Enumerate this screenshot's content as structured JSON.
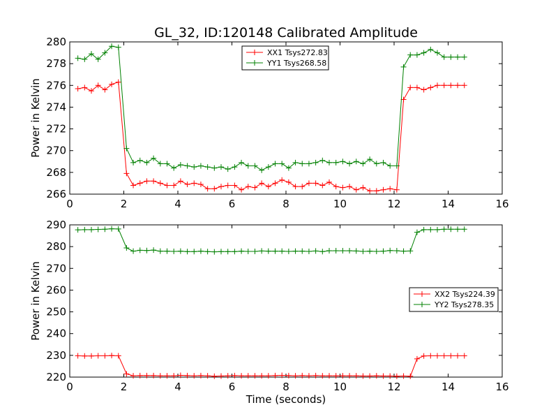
{
  "title": "GL_32, ID:120148 Calibrated Amplitude",
  "xlabel": "Time (seconds)",
  "colors": {
    "xx": "#ff0000",
    "yy": "#008000"
  },
  "chart_data": [
    {
      "type": "line",
      "ylabel": "Power in Kelvin",
      "xlim": [
        0,
        16
      ],
      "ylim": [
        266,
        280
      ],
      "xticks": [
        "0",
        "2",
        "4",
        "6",
        "8",
        "10",
        "12",
        "14",
        "16"
      ],
      "yticks": [
        "266",
        "268",
        "270",
        "272",
        "274",
        "276",
        "278",
        "280"
      ],
      "grid": false,
      "legend_position": "top-center",
      "x": [
        0.3,
        0.55,
        0.8,
        1.05,
        1.3,
        1.55,
        1.8,
        2.1,
        2.35,
        2.6,
        2.85,
        3.1,
        3.35,
        3.6,
        3.85,
        4.1,
        4.35,
        4.6,
        4.85,
        5.1,
        5.35,
        5.6,
        5.85,
        6.1,
        6.35,
        6.6,
        6.85,
        7.1,
        7.35,
        7.6,
        7.85,
        8.1,
        8.35,
        8.6,
        8.85,
        9.1,
        9.35,
        9.6,
        9.85,
        10.1,
        10.35,
        10.6,
        10.85,
        11.1,
        11.35,
        11.6,
        11.85,
        12.1,
        12.35,
        12.6,
        12.85,
        13.1,
        13.35,
        13.6,
        13.85,
        14.1,
        14.35,
        14.6
      ],
      "series": [
        {
          "name": "XX1 Tsys272.83",
          "color": "#ff0000",
          "values": [
            275.7,
            275.8,
            275.5,
            276.0,
            275.6,
            276.1,
            276.3,
            267.9,
            266.8,
            267.0,
            267.2,
            267.2,
            267.0,
            266.8,
            266.8,
            267.2,
            266.9,
            267.0,
            266.9,
            266.5,
            266.5,
            266.7,
            266.8,
            266.8,
            266.4,
            266.7,
            266.6,
            267.0,
            266.7,
            267.0,
            267.3,
            267.1,
            266.7,
            266.7,
            267.0,
            267.0,
            266.8,
            267.1,
            266.7,
            266.6,
            266.7,
            266.4,
            266.6,
            266.3,
            266.3,
            266.4,
            266.5,
            266.4,
            274.7,
            275.8,
            275.8,
            275.6,
            275.8,
            276.0,
            276.0,
            276.0,
            276.0,
            276.0
          ]
        },
        {
          "name": "YY1 Tsys268.58",
          "color": "#008000",
          "values": [
            278.5,
            278.4,
            278.9,
            278.4,
            279.0,
            279.6,
            279.5,
            270.2,
            268.9,
            269.1,
            268.9,
            269.3,
            268.8,
            268.8,
            268.4,
            268.7,
            268.6,
            268.5,
            268.6,
            268.5,
            268.4,
            268.5,
            268.3,
            268.5,
            268.9,
            268.6,
            268.6,
            268.2,
            268.5,
            268.8,
            268.8,
            268.4,
            268.9,
            268.8,
            268.8,
            268.9,
            269.1,
            268.9,
            268.9,
            269.0,
            268.8,
            269.0,
            268.8,
            269.2,
            268.8,
            268.9,
            268.6,
            268.6,
            277.7,
            278.8,
            278.8,
            279.0,
            279.3,
            279.0,
            278.6,
            278.6,
            278.6,
            278.6
          ]
        }
      ]
    },
    {
      "type": "line",
      "ylabel": "Power in Kelvin",
      "xlabel": "Time (seconds)",
      "xlim": [
        0,
        16
      ],
      "ylim": [
        220,
        290
      ],
      "xticks": [
        "0",
        "2",
        "4",
        "6",
        "8",
        "10",
        "12",
        "14",
        "16"
      ],
      "yticks": [
        "220",
        "230",
        "240",
        "250",
        "260",
        "270",
        "280",
        "290"
      ],
      "grid": false,
      "legend_position": "center-right",
      "x": [
        0.3,
        0.55,
        0.8,
        1.05,
        1.3,
        1.55,
        1.8,
        2.1,
        2.35,
        2.6,
        2.85,
        3.1,
        3.35,
        3.6,
        3.85,
        4.1,
        4.35,
        4.6,
        4.85,
        5.1,
        5.35,
        5.6,
        5.85,
        6.1,
        6.35,
        6.6,
        6.85,
        7.1,
        7.35,
        7.6,
        7.85,
        8.1,
        8.35,
        8.6,
        8.85,
        9.1,
        9.35,
        9.6,
        9.85,
        10.1,
        10.35,
        10.6,
        10.85,
        11.1,
        11.35,
        11.6,
        11.85,
        12.1,
        12.35,
        12.6,
        12.85,
        13.1,
        13.35,
        13.6,
        13.85,
        14.1,
        14.35,
        14.6
      ],
      "series": [
        {
          "name": "XX2 Tsys224.39",
          "color": "#ff0000",
          "values": [
            229.8,
            229.7,
            229.7,
            229.8,
            229.8,
            229.9,
            229.8,
            221.5,
            220.6,
            220.7,
            220.7,
            220.7,
            220.6,
            220.6,
            220.6,
            220.8,
            220.7,
            220.6,
            220.7,
            220.6,
            220.4,
            220.5,
            220.6,
            220.7,
            220.6,
            220.6,
            220.6,
            220.6,
            220.6,
            220.7,
            220.8,
            220.7,
            220.6,
            220.7,
            220.6,
            220.7,
            220.6,
            220.6,
            220.6,
            220.6,
            220.6,
            220.6,
            220.5,
            220.5,
            220.6,
            220.5,
            220.5,
            220.4,
            220.5,
            220.4,
            228.4,
            229.7,
            229.8,
            229.8,
            229.8,
            229.8,
            229.8,
            229.8
          ]
        },
        {
          "name": "YY2 Tsys278.35",
          "color": "#008000",
          "values": [
            287.7,
            287.8,
            287.8,
            287.9,
            288.0,
            288.2,
            288.1,
            279.4,
            277.9,
            278.3,
            278.2,
            278.4,
            277.9,
            277.9,
            277.8,
            277.9,
            277.7,
            277.7,
            277.9,
            277.7,
            277.6,
            277.7,
            277.7,
            277.7,
            277.9,
            277.8,
            277.8,
            278.0,
            277.9,
            277.9,
            277.9,
            277.8,
            277.9,
            277.9,
            277.8,
            278.0,
            277.7,
            278.1,
            278.1,
            278.1,
            278.1,
            278.0,
            277.8,
            277.9,
            277.8,
            277.9,
            278.2,
            278.1,
            277.9,
            278.0,
            286.6,
            287.8,
            287.8,
            287.8,
            288.0,
            288.0,
            288.0,
            288.0
          ]
        }
      ]
    }
  ]
}
